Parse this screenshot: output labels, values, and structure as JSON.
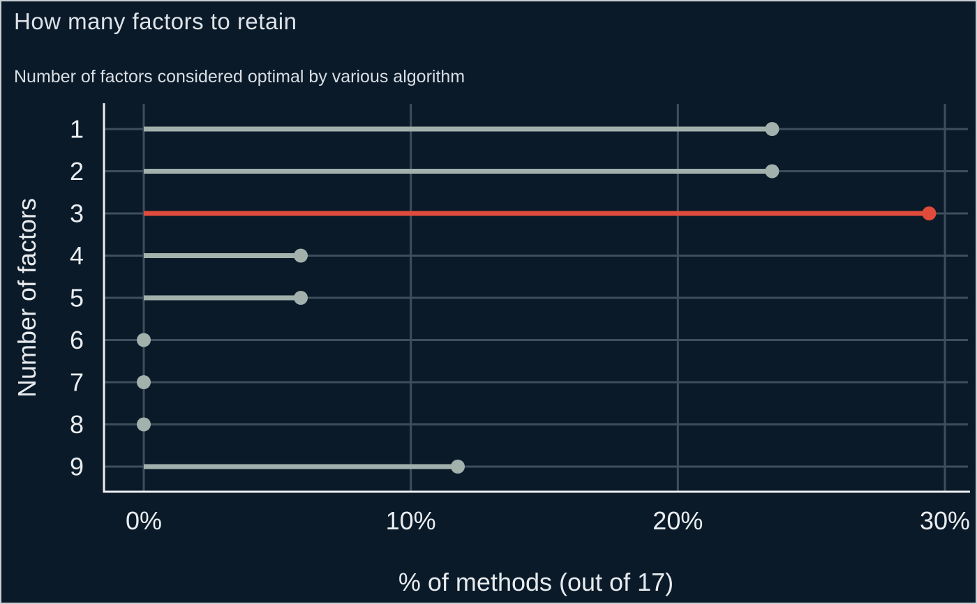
{
  "figure": {
    "title": "How many factors to retain",
    "subtitle": "Number of factors considered optimal by various algorithm"
  },
  "chart_data": {
    "type": "bar",
    "variant": "lollipop",
    "orientation": "horizontal",
    "title": "How many factors to retain",
    "subtitle": "Number of factors considered optimal by various algorithm",
    "xlabel": "% of methods (out of 17)",
    "ylabel": "Number of factors",
    "categories": [
      "1",
      "2",
      "3",
      "4",
      "5",
      "6",
      "7",
      "8",
      "9"
    ],
    "values_pct": [
      23.53,
      23.53,
      29.41,
      5.88,
      5.88,
      0,
      0,
      0,
      11.76
    ],
    "counts_out_of_17": [
      4,
      4,
      5,
      1,
      1,
      0,
      0,
      0,
      2
    ],
    "total_methods": 17,
    "highlight_category": "3",
    "highlight_index": 2,
    "xlim": [
      0,
      30
    ],
    "xticks": [
      {
        "value": 0,
        "label": "0%"
      },
      {
        "value": 10,
        "label": "10%"
      },
      {
        "value": 20,
        "label": "20%"
      },
      {
        "value": 30,
        "label": "30%"
      }
    ],
    "grid": true,
    "legend": false,
    "colors": {
      "background": "#0b1a29",
      "stem": "#a3b1ad",
      "highlight": "#e04b3c",
      "gridline": "#3f4e5c",
      "axis_line": "#eceef0",
      "tick_text": "#e9edf0",
      "title_text": "#dde3e8",
      "border": "#c9ced3"
    }
  }
}
